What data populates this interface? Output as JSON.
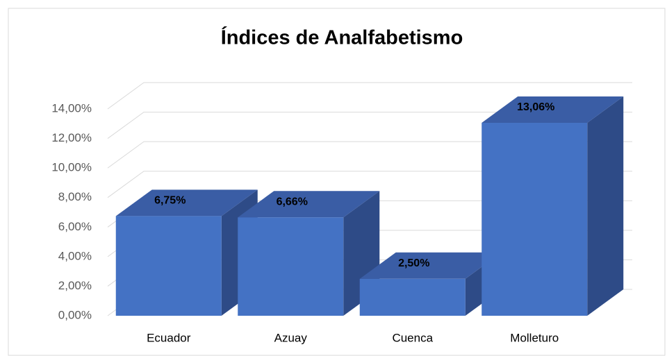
{
  "chart_data": {
    "type": "bar",
    "title": "Índices de  Analfabetismo",
    "categories": [
      "Ecuador",
      "Azuay",
      "Cuenca",
      "Molleturo"
    ],
    "values": [
      6.75,
      6.66,
      2.5,
      13.06
    ],
    "value_labels": [
      "6,75%",
      "6,66%",
      "2,50%",
      "13,06%"
    ],
    "color": "#4472c4",
    "ylim": [
      0,
      14
    ],
    "yticks": [
      {
        "value": 0,
        "label": "0,00%"
      },
      {
        "value": 2,
        "label": "2,00%"
      },
      {
        "value": 4,
        "label": "4,00%"
      },
      {
        "value": 6,
        "label": "6,00%"
      },
      {
        "value": 8,
        "label": "8,00%"
      },
      {
        "value": 10,
        "label": "10,00%"
      },
      {
        "value": 12,
        "label": "12,00%"
      },
      {
        "value": 14,
        "label": "14,00%"
      }
    ],
    "grid": true
  }
}
